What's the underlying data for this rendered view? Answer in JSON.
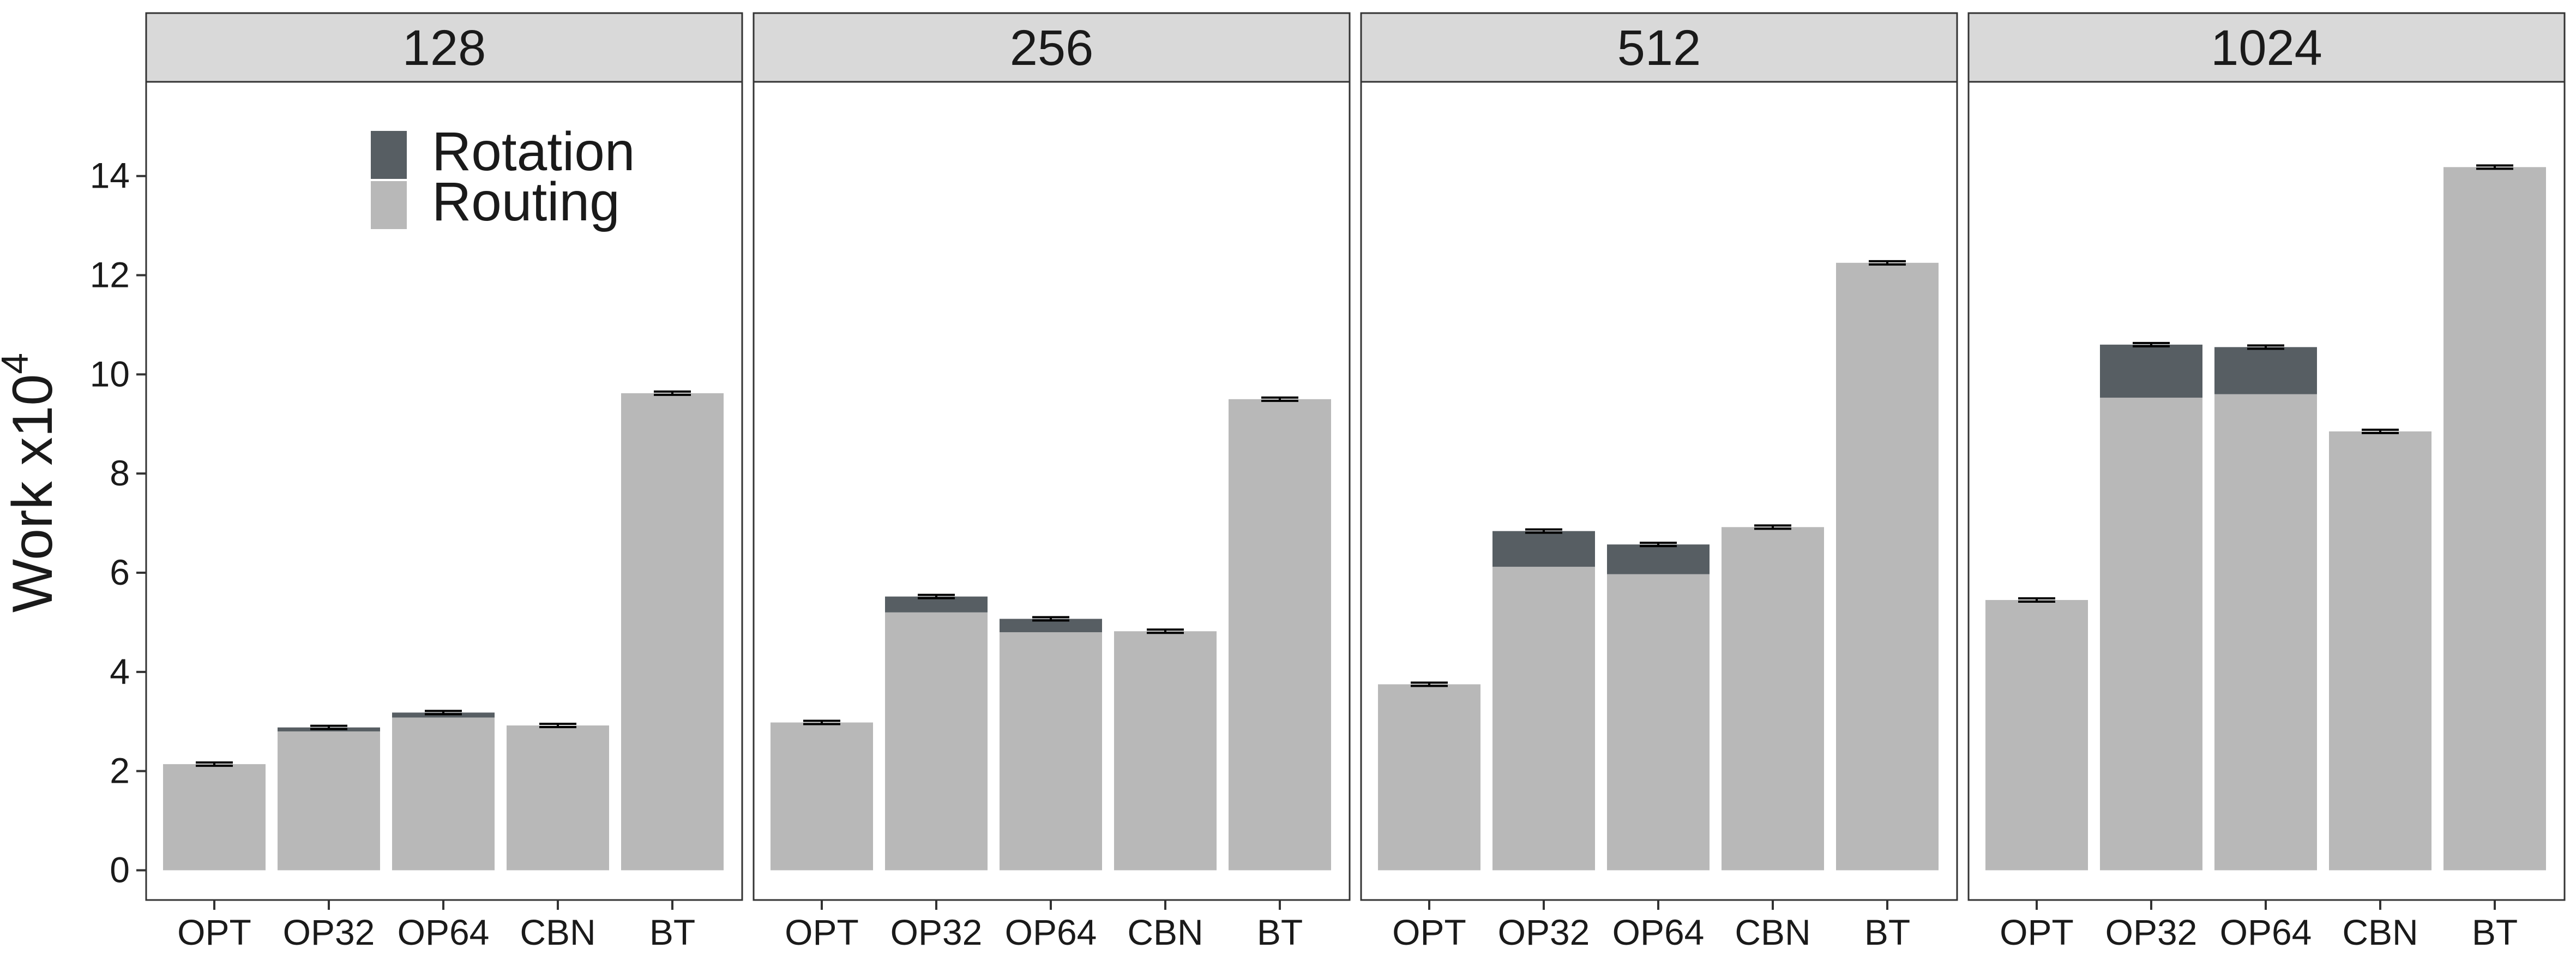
{
  "chart_data": {
    "type": "bar",
    "stacked": true,
    "facets": [
      "128",
      "256",
      "512",
      "1024"
    ],
    "categories": [
      "OPT",
      "OP32",
      "OP64",
      "CBN",
      "BT"
    ],
    "ylabel_main": "Work x10",
    "ylabel_exp": "4",
    "xlabel": "",
    "ylim": [
      -0.6,
      15.9
    ],
    "yticks": [
      "0",
      "2",
      "4",
      "6",
      "8",
      "10",
      "12",
      "14"
    ],
    "grid": false,
    "legend": {
      "position": "top-left inside first panel",
      "items": [
        {
          "label": "Rotation",
          "color": "#575e63"
        },
        {
          "label": "Routing",
          "color": "#b8b8b8"
        }
      ]
    },
    "series": [
      {
        "name": "Routing",
        "color": "#b8b8b8",
        "values": [
          [
            2.14,
            2.8,
            3.08,
            2.92,
            9.62
          ],
          [
            2.98,
            5.2,
            4.8,
            4.82,
            9.5
          ],
          [
            3.75,
            6.12,
            5.97,
            6.92,
            12.25
          ],
          [
            5.45,
            9.53,
            9.6,
            8.85,
            14.18
          ]
        ]
      },
      {
        "name": "Rotation",
        "color": "#575e63",
        "values": [
          [
            0,
            0.08,
            0.1,
            0,
            0
          ],
          [
            0,
            0.32,
            0.27,
            0,
            0
          ],
          [
            0,
            0.72,
            0.6,
            0,
            0
          ],
          [
            0,
            1.07,
            0.95,
            0,
            0
          ]
        ]
      }
    ],
    "error_bar_color": "#000000"
  }
}
